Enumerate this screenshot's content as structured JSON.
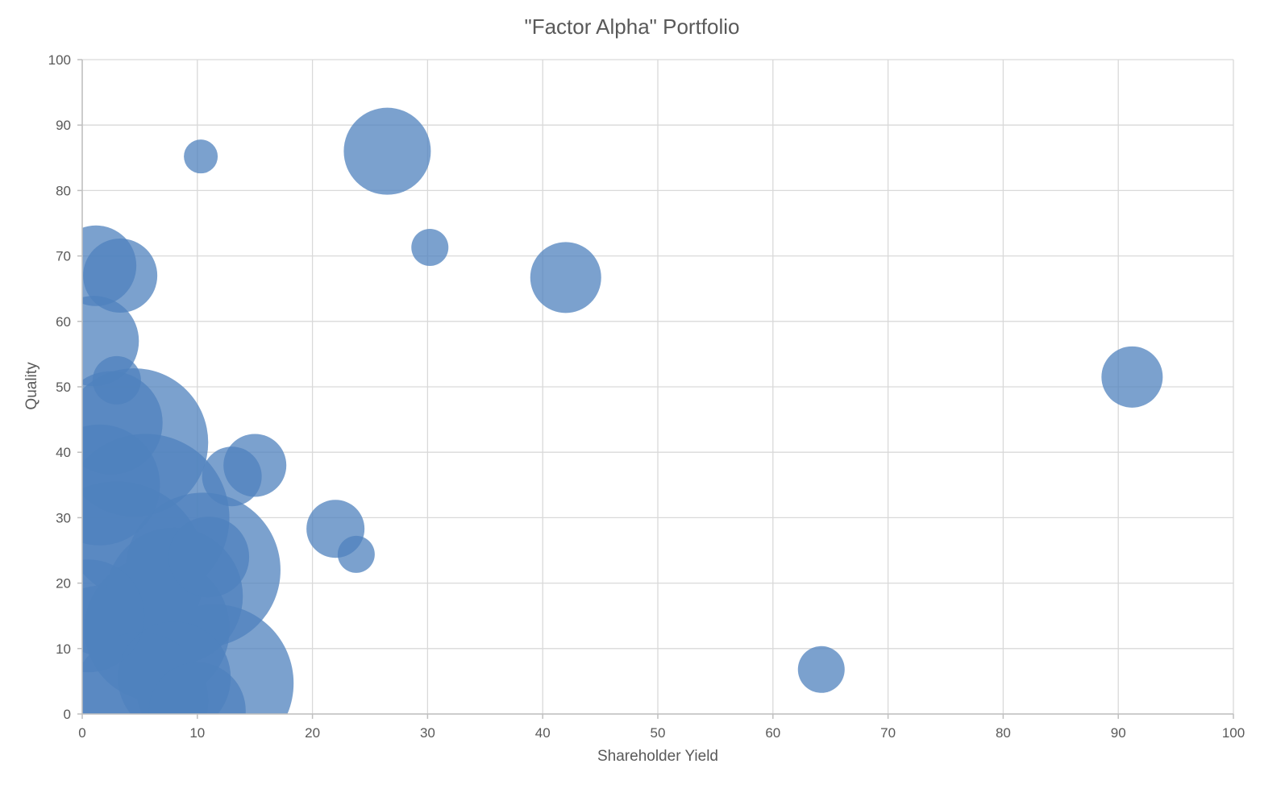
{
  "chart_data": {
    "type": "bubble",
    "title": "\"Factor Alpha\" Portfolio",
    "xlabel": "Shareholder Yield",
    "ylabel": "Quality",
    "xlim": [
      0,
      100
    ],
    "ylim": [
      0,
      100
    ],
    "x_ticks": [
      "0",
      "10",
      "20",
      "30",
      "40",
      "50",
      "60",
      "70",
      "80",
      "90",
      "100"
    ],
    "y_ticks": [
      "0",
      "10",
      "20",
      "30",
      "40",
      "50",
      "60",
      "70",
      "80",
      "90",
      "100"
    ],
    "grid": true,
    "legend": "none",
    "color": "#4f81bd",
    "points": [
      {
        "x": 26.5,
        "y": 86.0,
        "size": 54
      },
      {
        "x": 10.3,
        "y": 85.2,
        "size": 21
      },
      {
        "x": 30.2,
        "y": 71.3,
        "size": 23
      },
      {
        "x": 42.0,
        "y": 66.7,
        "size": 44
      },
      {
        "x": 91.2,
        "y": 51.5,
        "size": 38
      },
      {
        "x": 64.2,
        "y": 6.8,
        "size": 29
      },
      {
        "x": 22.0,
        "y": 28.3,
        "size": 36
      },
      {
        "x": 23.8,
        "y": 24.4,
        "size": 23
      },
      {
        "x": 15.0,
        "y": 38.0,
        "size": 39
      },
      {
        "x": 13.0,
        "y": 36.3,
        "size": 37
      },
      {
        "x": 1.2,
        "y": 68.5,
        "size": 50
      },
      {
        "x": 3.3,
        "y": 67.0,
        "size": 46
      },
      {
        "x": 1.0,
        "y": 57.0,
        "size": 56
      },
      {
        "x": 3.0,
        "y": 51.0,
        "size": 30
      },
      {
        "x": 2.5,
        "y": 44.5,
        "size": 64
      },
      {
        "x": 4.5,
        "y": 41.5,
        "size": 92
      },
      {
        "x": 1.5,
        "y": 35.0,
        "size": 75
      },
      {
        "x": 5.5,
        "y": 30.0,
        "size": 104
      },
      {
        "x": 3.0,
        "y": 22.0,
        "size": 110
      },
      {
        "x": 10.5,
        "y": 22.0,
        "size": 96
      },
      {
        "x": 11.0,
        "y": 24.0,
        "size": 50
      },
      {
        "x": 8.0,
        "y": 18.0,
        "size": 85
      },
      {
        "x": 6.5,
        "y": 13.0,
        "size": 90
      },
      {
        "x": 11.5,
        "y": 4.7,
        "size": 98
      },
      {
        "x": 8.0,
        "y": 5.5,
        "size": 70
      },
      {
        "x": 10.0,
        "y": 0.5,
        "size": 60
      },
      {
        "x": 2.0,
        "y": 8.0,
        "size": 95
      },
      {
        "x": 5.0,
        "y": 2.0,
        "size": 85
      },
      {
        "x": 0.5,
        "y": 15.0,
        "size": 70
      }
    ]
  }
}
